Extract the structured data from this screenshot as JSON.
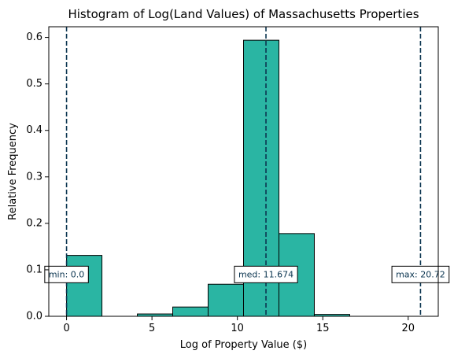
{
  "chart_data": {
    "type": "bar",
    "title": "Histogram of Log(Land Values) of Massachusetts Properties",
    "xlabel": "Log of Property Value ($)",
    "ylabel": "Relative Frequency",
    "xlim": [
      -1.04,
      21.76
    ],
    "ylim": [
      0,
      0.623
    ],
    "xticks": [
      0,
      5,
      10,
      15,
      20
    ],
    "yticks": [
      0.0,
      0.1,
      0.2,
      0.3,
      0.4,
      0.5,
      0.6
    ],
    "bins": [
      {
        "start": 0.0,
        "end": 2.072,
        "value": 0.131
      },
      {
        "start": 2.072,
        "end": 4.144,
        "value": 0.0
      },
      {
        "start": 4.144,
        "end": 6.216,
        "value": 0.005
      },
      {
        "start": 6.216,
        "end": 8.288,
        "value": 0.02
      },
      {
        "start": 8.288,
        "end": 10.36,
        "value": 0.069
      },
      {
        "start": 10.36,
        "end": 12.432,
        "value": 0.594
      },
      {
        "start": 12.432,
        "end": 14.504,
        "value": 0.178
      },
      {
        "start": 14.504,
        "end": 16.576,
        "value": 0.004
      },
      {
        "start": 16.576,
        "end": 18.648,
        "value": 0.0
      },
      {
        "start": 18.648,
        "end": 20.72,
        "value": 0.0
      }
    ],
    "reference_lines": [
      {
        "x": 0.0,
        "label": "min: 0.0"
      },
      {
        "x": 11.674,
        "label": "med: 11.674"
      },
      {
        "x": 20.72,
        "label": "max: 20.72"
      }
    ],
    "annotation_y": 0.09,
    "grid": false,
    "colors": {
      "bar_fill": "#2ab5a3",
      "bar_edge": "#000000",
      "ref_line": "#0b3550"
    }
  }
}
